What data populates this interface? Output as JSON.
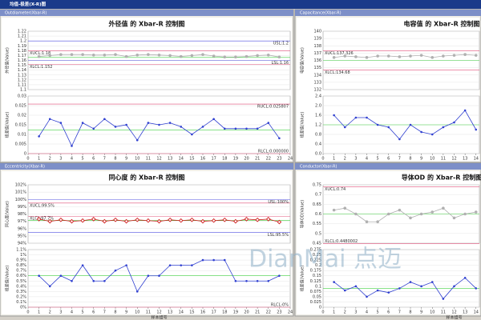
{
  "window_title": "均值-极差(X-R)图",
  "watermark": "DianMai 点迈",
  "panels": [
    {
      "header": "Outdiameter(Xbar-R)",
      "title": "外径值 的 Xbar-R 控制图",
      "charts": [
        {
          "type": "line",
          "y_label": "外径值(Value)",
          "color": "#b0b0b0",
          "marker": "circle",
          "xlim": [
            0,
            24
          ],
          "ylim": [
            1.1,
            1.22
          ],
          "yticks": [
            1.1,
            1.11,
            1.12,
            1.13,
            1.14,
            1.15,
            1.16,
            1.17,
            1.18,
            1.19,
            1.2,
            1.21,
            1.22
          ],
          "x": [
            1,
            2,
            3,
            4,
            5,
            6,
            7,
            8,
            9,
            10,
            11,
            12,
            13,
            14,
            15,
            16,
            17,
            18,
            19,
            20,
            21,
            22,
            23
          ],
          "values": [
            1.168,
            1.17,
            1.172,
            1.172,
            1.172,
            1.171,
            1.171,
            1.172,
            1.168,
            1.171,
            1.172,
            1.171,
            1.17,
            1.168,
            1.17,
            1.172,
            1.169,
            1.167,
            1.167,
            1.168,
            1.17,
            1.171,
            1.167
          ],
          "limits": [
            {
              "label": "XUCL:1.18",
              "value": 1.18,
              "color": "#e0507a"
            },
            {
              "label": "USL:1.2",
              "value": 1.2,
              "color": "#5050e0"
            },
            {
              "label": "XLCL:1.152",
              "value": 1.152,
              "color": "#e0507a"
            },
            {
              "label": "LSL:1.16",
              "value": 1.16,
              "color": "#5050e0"
            }
          ],
          "center": 1.166
        },
        {
          "type": "line",
          "y_label": "极差值(Value)",
          "color": "#3040d0",
          "marker": "dot",
          "xlim": [
            0,
            24
          ],
          "ylim": [
            0,
            0.03
          ],
          "yticks": [
            0,
            0.005,
            0.01,
            0.015,
            0.02,
            0.025,
            0.03
          ],
          "xticks": [
            0,
            1,
            2,
            3,
            4,
            5,
            6,
            7,
            8,
            9,
            10,
            11,
            12,
            13,
            14,
            15,
            16,
            17,
            18,
            19,
            20,
            21,
            22,
            23,
            24
          ],
          "x": [
            1,
            2,
            3,
            4,
            5,
            6,
            7,
            8,
            9,
            10,
            11,
            12,
            13,
            14,
            15,
            16,
            17,
            18,
            19,
            20,
            21,
            22,
            23
          ],
          "values": [
            0.009,
            0.018,
            0.016,
            0.004,
            0.016,
            0.013,
            0.018,
            0.014,
            0.015,
            0.007,
            0.016,
            0.015,
            0.016,
            0.014,
            0.01,
            0.014,
            0.018,
            0.013,
            0.013,
            0.013,
            0.013,
            0.016,
            0.008
          ],
          "limits": [
            {
              "label": "RUCL:0.025807",
              "value": 0.025807,
              "color": "#e0507a"
            },
            {
              "label": "RLCL:0.000000",
              "value": 0,
              "color": "#e0507a"
            }
          ],
          "center": 0.0122
        }
      ]
    },
    {
      "header": "Capacitance(Xbar-R)",
      "title": "电容值 的 Xbar-R 控制图",
      "charts": [
        {
          "type": "line",
          "y_label": "电容值(Value)",
          "color": "#b0b0b0",
          "marker": "circle",
          "xlim": [
            0,
            24
          ],
          "ylim": [
            132,
            140
          ],
          "yticks": [
            132,
            133,
            134,
            135,
            136,
            137,
            138,
            139,
            140
          ],
          "x": [
            1,
            2,
            3,
            4,
            5,
            6,
            7,
            8,
            9,
            10,
            11,
            12,
            13,
            14
          ],
          "values": [
            136.4,
            136.6,
            136.5,
            136.4,
            136.6,
            136.6,
            136.5,
            136.6,
            136.7,
            136.4,
            136.6,
            136.7,
            136.8,
            136.7
          ],
          "limits": [
            {
              "label": "XUCL:137.326",
              "value": 137.326,
              "color": "#e0507a"
            },
            {
              "label": "XLCL:134.68",
              "value": 134.68,
              "color": "#e0507a"
            }
          ],
          "center": 136
        },
        {
          "type": "line",
          "y_label": "极差值(Value)",
          "color": "#3040d0",
          "marker": "dot",
          "xlim": [
            0,
            24
          ],
          "ylim": [
            0,
            2.4
          ],
          "yticks": [
            {
              "value": 0,
              "label": "0.0"
            },
            0.4,
            0.8,
            1.2,
            1.6,
            {
              "value": 2,
              "label": "2.0"
            },
            2.4
          ],
          "xticks": [
            0,
            1,
            2,
            3,
            4,
            5,
            6,
            7,
            8,
            9,
            10,
            11,
            12,
            13,
            14
          ],
          "x": [
            1,
            2,
            3,
            4,
            5,
            6,
            7,
            8,
            9,
            10,
            11,
            12,
            13,
            14
          ],
          "values": [
            1.6,
            1.1,
            1.5,
            1.5,
            1.2,
            1.1,
            0.6,
            1.2,
            0.9,
            0.8,
            1.1,
            1.3,
            1.8,
            1
          ],
          "limits": [],
          "center": 1.2
        }
      ]
    },
    {
      "header": "Eccentricity(Xbar-R)",
      "title": "同心度 的 Xbar-R 控制图",
      "charts": [
        {
          "type": "line",
          "y_label": "同心度(Value)",
          "color": "#d02020",
          "marker": "diamond",
          "xlim": [
            0,
            24
          ],
          "ylim": [
            94,
            102
          ],
          "yticks": [
            {
              "value": 94,
              "label": "94%"
            },
            {
              "value": 95,
              "label": "95%"
            },
            {
              "value": 96,
              "label": "96%"
            },
            {
              "value": 97,
              "label": "97%"
            },
            {
              "value": 98,
              "label": "98%"
            },
            {
              "value": 99,
              "label": "99%"
            },
            {
              "value": 100,
              "label": "100%"
            },
            {
              "value": 101,
              "label": "101%"
            },
            {
              "value": 102,
              "label": "102%"
            }
          ],
          "x": [
            1,
            2,
            3,
            4,
            5,
            6,
            7,
            8,
            9,
            10,
            11,
            12,
            13,
            14,
            15,
            16,
            17,
            18,
            19,
            20,
            21,
            22,
            23
          ],
          "values": [
            97.3,
            97,
            97.2,
            97,
            97.1,
            97.3,
            97,
            97.2,
            97,
            97.2,
            97.1,
            97,
            97.2,
            97.1,
            97.2,
            97,
            97.1,
            97.2,
            97,
            97.3,
            97.2,
            97.3,
            96.9
          ],
          "limits": [
            {
              "label": "XUCL:99.5%",
              "value": 99.5,
              "color": "#e0507a"
            },
            {
              "label": "USL:100%",
              "value": 100,
              "color": "#5050e0"
            },
            {
              "label": "XLCL:97.7%",
              "value": 97.7,
              "color": "#e0507a"
            },
            {
              "label": "LSL:95.5%",
              "value": 95.5,
              "color": "#5050e0"
            }
          ],
          "center": 97.1
        },
        {
          "type": "line",
          "y_label": "极差值(Value)",
          "x_label": "样本组号",
          "color": "#3040d0",
          "marker": "dot",
          "xlim": [
            0,
            24
          ],
          "ylim": [
            0,
            1.1
          ],
          "yticks": [
            {
              "value": 0,
              "label": "0%"
            },
            {
              "value": 0.1,
              "label": "0.1%"
            },
            {
              "value": 0.2,
              "label": "0.2%"
            },
            {
              "value": 0.3,
              "label": "0.3%"
            },
            {
              "value": 0.4,
              "label": "0.4%"
            },
            {
              "value": 0.5,
              "label": "0.5%"
            },
            {
              "value": 0.6,
              "label": "0.6%"
            },
            {
              "value": 0.7,
              "label": "0.7%"
            },
            {
              "value": 0.8,
              "label": "0.8%"
            },
            {
              "value": 0.9,
              "label": "0.9%"
            },
            {
              "value": 1,
              "label": "1%"
            },
            {
              "value": 1.1,
              "label": "1.1%"
            }
          ],
          "xticks": [
            0,
            1,
            2,
            3,
            4,
            5,
            6,
            7,
            8,
            9,
            10,
            11,
            12,
            13,
            14,
            15,
            16,
            17,
            18,
            19,
            20,
            21,
            22,
            23,
            24
          ],
          "x": [
            1,
            2,
            3,
            4,
            5,
            6,
            7,
            8,
            9,
            10,
            11,
            12,
            13,
            14,
            15,
            16,
            17,
            18,
            19,
            20,
            21,
            22,
            23
          ],
          "values": [
            0.6,
            0.4,
            0.6,
            0.5,
            0.8,
            0.5,
            0.5,
            0.7,
            0.8,
            0.3,
            0.6,
            0.6,
            0.8,
            0.8,
            0.8,
            0.9,
            0.9,
            0.9,
            0.5,
            0.5,
            0.5,
            0.5,
            0.6
          ],
          "limits": [
            {
              "label": "RLCL:0%",
              "value": 0,
              "color": "#e0507a"
            }
          ],
          "center": 0.6
        }
      ]
    },
    {
      "header": "Conductor(Xbar-R)",
      "title": "导体OD 的 Xbar-R 控制图",
      "charts": [
        {
          "type": "line",
          "y_label": "导体OD(Value)",
          "color": "#b0b0b0",
          "marker": "circle",
          "xlim": [
            0,
            24
          ],
          "ylim": [
            0.45,
            0.75
          ],
          "yticks": [
            0.45,
            0.5,
            0.55,
            0.6,
            0.65,
            0.7,
            0.75
          ],
          "x": [
            1,
            2,
            3,
            4,
            5,
            6,
            7,
            8,
            9,
            10,
            11,
            12,
            13,
            14
          ],
          "values": [
            0.62,
            0.63,
            0.6,
            0.56,
            0.56,
            0.6,
            0.62,
            0.58,
            0.6,
            0.61,
            0.63,
            0.58,
            0.6,
            0.61
          ],
          "limits": [
            {
              "label": "XUCL:0.74",
              "value": 0.74,
              "color": "#e0507a"
            },
            {
              "label": "XLCL:0.4480002",
              "value": 0.4480002,
              "color": "#e0507a"
            }
          ],
          "center": 0.6
        },
        {
          "type": "line",
          "y_label": "极差值(Value)",
          "x_label": "样本组号",
          "color": "#3040d0",
          "marker": "dot",
          "xlim": [
            0,
            24
          ],
          "ylim": [
            0,
            0.275
          ],
          "yticks": [
            0,
            0.025,
            0.05,
            0.075,
            0.1,
            0.125,
            0.15,
            0.175,
            0.2,
            0.225,
            0.25,
            0.275
          ],
          "xticks": [
            0,
            1,
            2,
            3,
            4,
            5,
            6,
            7,
            8,
            9,
            10,
            11,
            12,
            13,
            14
          ],
          "x": [
            1,
            2,
            3,
            4,
            5,
            6,
            7,
            8,
            9,
            10,
            11,
            12,
            13,
            14
          ],
          "values": [
            0.12,
            0.08,
            0.1,
            0.05,
            0.08,
            0.07,
            0.09,
            0.12,
            0.1,
            0.12,
            0.04,
            0.1,
            0.14,
            0.09
          ],
          "limits": [],
          "center": 0.09
        }
      ]
    }
  ]
}
